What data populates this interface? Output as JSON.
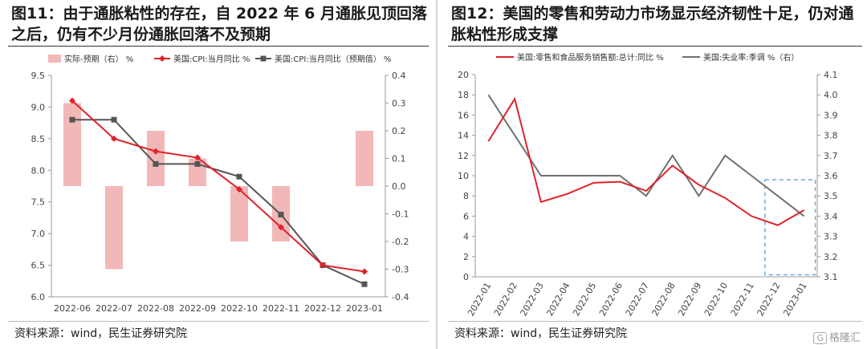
{
  "left": {
    "title": "图11：由于通胀粘性的存在，自 2022 年 6 月通胀见顶回落之后，仍有不少月份通胀回落不及预期",
    "source": "资料来源：wind，民生证券研究院",
    "legend": [
      "实际-预期（右） %",
      "美国:CPI:当月同比 %",
      "美国:CPI:当月同比（预期值） %"
    ]
  },
  "right": {
    "title": "图12：美国的零售和劳动力市场显示经济韧性十足，仍对通胀粘性形成支撑",
    "source": "资料来源：wind，民生证券研究院",
    "legend": [
      "美国:零售和食品服务销售额:总计:同比 %",
      "美国:失业率:季调 %（右）"
    ]
  },
  "watermark": "格隆汇",
  "chart_data": [
    {
      "type": "bar+line",
      "categories": [
        "2022-06",
        "2022-07",
        "2022-08",
        "2022-09",
        "2022-10",
        "2022-11",
        "2022-12",
        "2023-01"
      ],
      "series": [
        {
          "name": "实际-预期（右） %",
          "type": "bar",
          "axis": "right",
          "color": "#f2b8b8",
          "values": [
            0.3,
            -0.3,
            0.2,
            0.1,
            -0.2,
            -0.2,
            null,
            0.2
          ]
        },
        {
          "name": "美国:CPI:当月同比 %",
          "type": "line",
          "axis": "left",
          "color": "#e0222a",
          "marker": "diamond",
          "values": [
            9.1,
            8.5,
            8.3,
            8.2,
            7.7,
            7.1,
            6.5,
            6.4
          ]
        },
        {
          "name": "美国:CPI:当月同比（预期值） %",
          "type": "line",
          "axis": "left",
          "color": "#555555",
          "marker": "square",
          "values": [
            8.8,
            8.8,
            8.1,
            8.1,
            7.9,
            7.3,
            6.5,
            6.2
          ]
        }
      ],
      "yleft": {
        "min": 6.0,
        "max": 9.5,
        "ticks": [
          "6.0",
          "6.5",
          "7.0",
          "7.5",
          "8.0",
          "8.5",
          "9.0",
          "9.5"
        ]
      },
      "yright": {
        "min": -0.4,
        "max": 0.4,
        "ticks": [
          "-0.4",
          "-0.3",
          "-0.2",
          "-0.1",
          "0.0",
          "0.1",
          "0.2",
          "0.3",
          "0.4"
        ]
      },
      "legend_position": "top"
    },
    {
      "type": "line",
      "categories": [
        "2022-01",
        "2022-02",
        "2022-03",
        "2022-04",
        "2022-05",
        "2022-06",
        "2022-07",
        "2022-08",
        "2022-09",
        "2022-10",
        "2022-11",
        "2022-12",
        "2023-01"
      ],
      "series": [
        {
          "name": "美国:零售和食品服务销售额:总计:同比 %",
          "axis": "left",
          "color": "#e0222a",
          "values": [
            13.4,
            17.6,
            7.4,
            8.2,
            9.3,
            9.4,
            8.5,
            11.0,
            9.1,
            7.8,
            6.0,
            5.1,
            6.6
          ]
        },
        {
          "name": "美国:失业率:季调 %（右）",
          "axis": "right",
          "color": "#707070",
          "values": [
            4.0,
            3.8,
            3.6,
            3.6,
            3.6,
            3.6,
            3.5,
            3.7,
            3.5,
            3.7,
            3.6,
            3.5,
            3.4
          ]
        }
      ],
      "yleft": {
        "min": 0,
        "max": 20,
        "ticks": [
          "0",
          "2",
          "4",
          "6",
          "8",
          "10",
          "12",
          "14",
          "16",
          "18",
          "20"
        ]
      },
      "yright": {
        "min": 3.1,
        "max": 4.1,
        "ticks": [
          "3.1",
          "3.2",
          "3.3",
          "3.4",
          "3.5",
          "3.6",
          "3.7",
          "3.8",
          "3.9",
          "4.0",
          "4.1"
        ]
      },
      "highlight": {
        "from": "2022-12",
        "to": "2023-01",
        "style": "dashed-box",
        "color": "#6fa8dc"
      },
      "legend_position": "top"
    }
  ]
}
